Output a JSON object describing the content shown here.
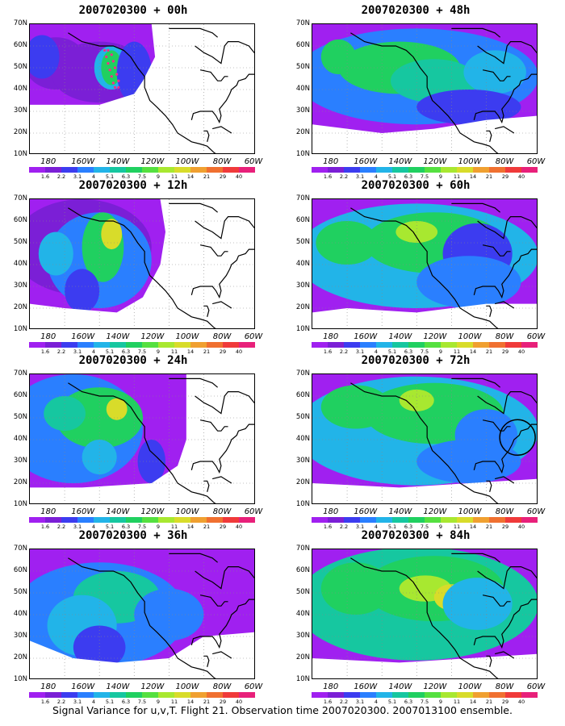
{
  "panels": [
    {
      "title": "2007020300 + 00h",
      "variant": "h00"
    },
    {
      "title": "2007020300 + 48h",
      "variant": "h48"
    },
    {
      "title": "2007020300 + 12h",
      "variant": "h12"
    },
    {
      "title": "2007020300 + 60h",
      "variant": "h60"
    },
    {
      "title": "2007020300 + 24h",
      "variant": "h24"
    },
    {
      "title": "2007020300 + 72h",
      "variant": "h72"
    },
    {
      "title": "2007020300 + 36h",
      "variant": "h36"
    },
    {
      "title": "2007020300 + 84h",
      "variant": "h84"
    }
  ],
  "lat_labels": [
    "70N",
    "60N",
    "50N",
    "40N",
    "30N",
    "20N",
    "10N"
  ],
  "lon_labels": [
    "180",
    "160W",
    "140W",
    "120W",
    "100W",
    "80W",
    "60W"
  ],
  "colorbar": {
    "levels": [
      "1.6",
      "2.2",
      "3.1",
      "4",
      "5.1",
      "6.3",
      "7.5",
      "9",
      "11",
      "14",
      "21",
      "29",
      "40"
    ],
    "colors": [
      "#a020f0",
      "#7b1fd6",
      "#3c3cf0",
      "#2a7fff",
      "#22b4e8",
      "#16c7a0",
      "#20d060",
      "#55e040",
      "#a8e830",
      "#d8dc2a",
      "#f0a030",
      "#f07030",
      "#f03a3a",
      "#e8207a"
    ]
  },
  "caption": "Signal Variance for u,v,T. Flight 21. Observation time 2007020300. 2007013100 ensemble."
}
